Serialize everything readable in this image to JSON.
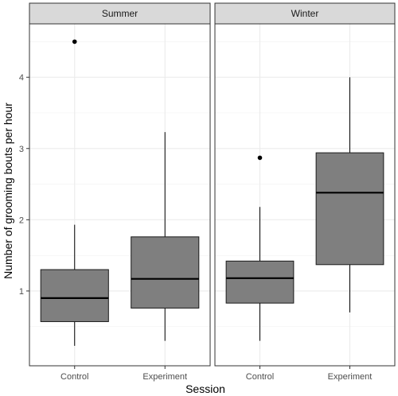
{
  "chart_data": {
    "type": "boxplot",
    "xlabel": "Session",
    "ylabel": "Number of grooming bouts per hour",
    "ylim": [
      -0.05,
      4.75
    ],
    "yticks": [
      1,
      2,
      3,
      4
    ],
    "categories": [
      "Control",
      "Experiment"
    ],
    "grid": true,
    "colors": {
      "box_fill": "#7f7f7f",
      "strip_fill": "#d9d9d9",
      "grid": "#ebebeb",
      "border": "#333333"
    },
    "panels": [
      {
        "name": "Summer",
        "boxes": [
          {
            "category": "Control",
            "min": 0.23,
            "q1": 0.57,
            "median": 0.9,
            "q3": 1.3,
            "max": 1.93,
            "outliers": [
              4.5
            ]
          },
          {
            "category": "Experiment",
            "min": 0.3,
            "q1": 0.76,
            "median": 1.17,
            "q3": 1.76,
            "max": 3.23,
            "outliers": []
          }
        ]
      },
      {
        "name": "Winter",
        "boxes": [
          {
            "category": "Control",
            "min": 0.3,
            "q1": 0.83,
            "median": 1.18,
            "q3": 1.42,
            "max": 2.18,
            "outliers": [
              2.87
            ]
          },
          {
            "category": "Experiment",
            "min": 0.7,
            "q1": 1.37,
            "median": 2.38,
            "q3": 2.94,
            "max": 4.0,
            "outliers": []
          }
        ]
      }
    ]
  }
}
